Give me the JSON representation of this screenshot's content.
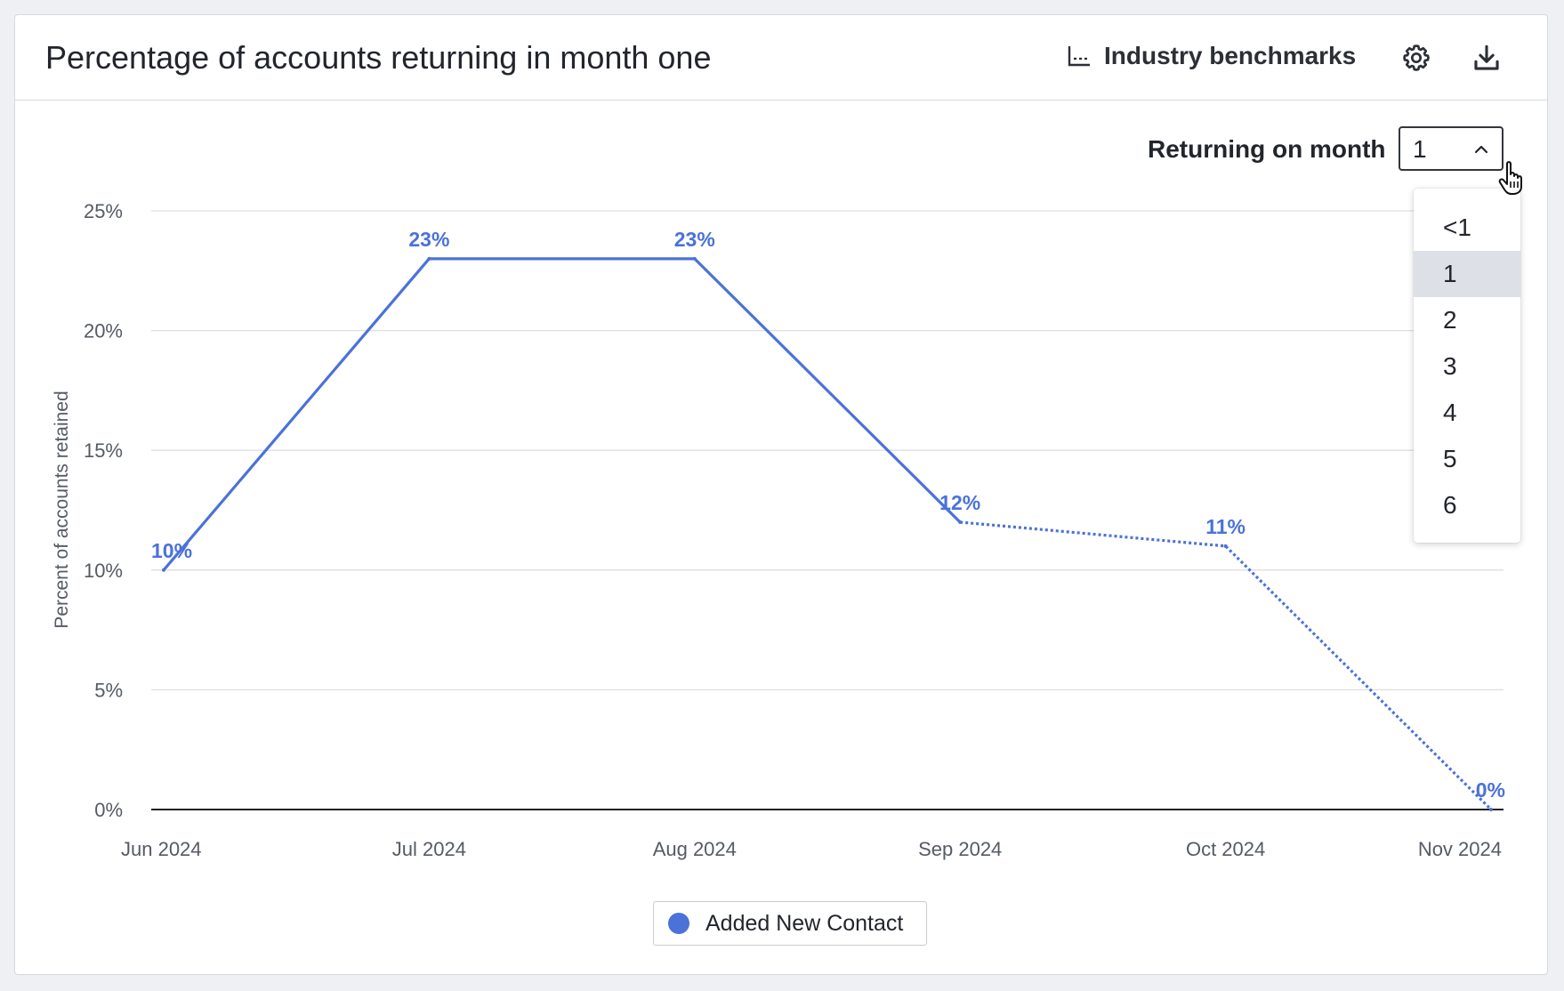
{
  "header": {
    "title": "Percentage of accounts returning in month one",
    "benchmarks_label": "Industry benchmarks",
    "icons": [
      "chart-axis-icon",
      "gear-icon",
      "download-icon"
    ]
  },
  "controls": {
    "returning_label": "Returning on month",
    "selected_value": "1",
    "options": [
      "<1",
      "1",
      "2",
      "3",
      "4",
      "5",
      "6"
    ]
  },
  "colors": {
    "series": "#4a72d8",
    "gridline": "#dcdfe4",
    "baseline": "#1f2227",
    "dropdown_selected": "#dde0e6"
  },
  "chart_data": {
    "type": "line",
    "title": "Percentage of accounts returning in month one",
    "ylabel": "Percent of accounts retained",
    "xlabel": "",
    "categories": [
      "Jun 2024",
      "Jul 2024",
      "Aug 2024",
      "Sep 2024",
      "Oct 2024",
      "Nov 2024"
    ],
    "series": [
      {
        "name": "Added New Contact",
        "values": [
          10,
          23,
          23,
          12,
          11,
          0
        ],
        "labels": [
          "10%",
          "23%",
          "23%",
          "12%",
          "11%",
          "0%"
        ],
        "solid_through_index": 3,
        "dotted_after_index": 3
      }
    ],
    "ylim": [
      0,
      25
    ],
    "yticks": [
      0,
      5,
      10,
      15,
      20,
      25
    ],
    "ytick_labels": [
      "0%",
      "5%",
      "10%",
      "15%",
      "20%",
      "25%"
    ],
    "grid": true,
    "legend_position": "bottom-center"
  }
}
